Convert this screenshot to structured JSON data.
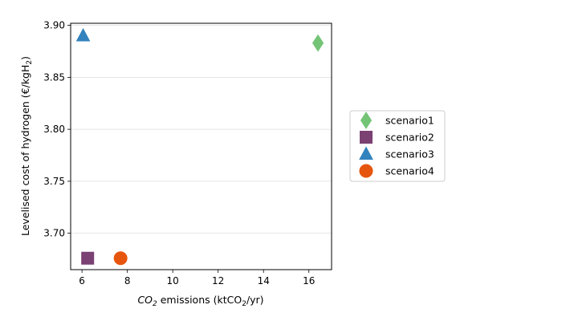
{
  "chart_data": {
    "type": "scatter",
    "xlabel": "CO2 emissions (ktCO2/yr)",
    "ylabel": "Levelised cost of hydrogen (€/kgH2)",
    "xlim": [
      5.5,
      17.0
    ],
    "ylim": [
      3.665,
      3.902
    ],
    "x_ticks": [
      6,
      8,
      10,
      12,
      14,
      16
    ],
    "x_tick_labels": [
      "6",
      "8",
      "10",
      "12",
      "14",
      "16"
    ],
    "y_ticks": [
      3.7,
      3.75,
      3.8,
      3.85,
      3.9
    ],
    "y_tick_labels": [
      "3.70",
      "3.75",
      "3.80",
      "3.85",
      "3.90"
    ],
    "grid": "horizontal",
    "legend_position": "right",
    "series": [
      {
        "name": "scenario1",
        "marker": "diamond",
        "color": "#74c476",
        "x": [
          16.4
        ],
        "y": [
          3.883
        ]
      },
      {
        "name": "scenario2",
        "marker": "square",
        "color": "#7b4173",
        "x": [
          6.25
        ],
        "y": [
          3.676
        ]
      },
      {
        "name": "scenario3",
        "marker": "triangle",
        "color": "#3182bd",
        "x": [
          6.05
        ],
        "y": [
          3.89
        ]
      },
      {
        "name": "scenario4",
        "marker": "circle",
        "color": "#e6550d",
        "x": [
          7.7
        ],
        "y": [
          3.676
        ]
      }
    ]
  }
}
